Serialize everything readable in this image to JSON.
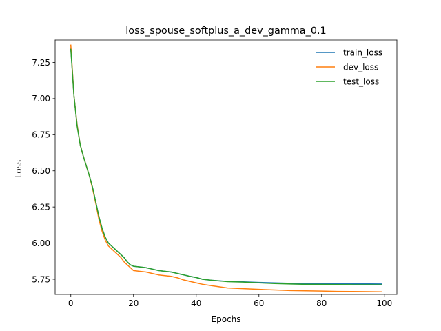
{
  "chart_data": {
    "type": "line",
    "title": "loss_spouse_softplus_a_dev_gamma_0.1",
    "xlabel": "Epochs",
    "ylabel": "Loss",
    "xlim": [
      -5,
      104
    ],
    "ylim": [
      5.645,
      7.405
    ],
    "xticks": [
      0,
      20,
      40,
      60,
      80,
      100
    ],
    "xtick_labels": [
      "0",
      "20",
      "40",
      "60",
      "80",
      "100"
    ],
    "yticks": [
      5.75,
      6.0,
      6.25,
      6.5,
      6.75,
      7.0,
      7.25
    ],
    "ytick_labels": [
      "5.75",
      "6.00",
      "6.25",
      "6.50",
      "6.75",
      "7.00",
      "7.25"
    ],
    "grid": false,
    "legend_position": "top-right",
    "series": [
      {
        "name": "train_loss",
        "color": "#1f77b4",
        "points": [
          [
            0,
            7.35
          ],
          [
            1,
            7.02
          ],
          [
            2,
            6.82
          ],
          [
            3,
            6.68
          ],
          [
            4,
            6.6
          ],
          [
            5,
            6.53
          ],
          [
            6,
            6.46
          ],
          [
            7,
            6.38
          ],
          [
            8,
            6.28
          ],
          [
            9,
            6.18
          ],
          [
            10,
            6.1
          ],
          [
            11,
            6.04
          ],
          [
            12,
            6.0
          ],
          [
            13,
            5.98
          ],
          [
            14,
            5.96
          ],
          [
            15,
            5.94
          ],
          [
            16,
            5.92
          ],
          [
            17,
            5.9
          ],
          [
            18,
            5.87
          ],
          [
            19,
            5.85
          ],
          [
            20,
            5.84
          ],
          [
            22,
            5.835
          ],
          [
            24,
            5.83
          ],
          [
            26,
            5.82
          ],
          [
            28,
            5.81
          ],
          [
            30,
            5.805
          ],
          [
            32,
            5.8
          ],
          [
            34,
            5.79
          ],
          [
            36,
            5.78
          ],
          [
            38,
            5.77
          ],
          [
            40,
            5.762
          ],
          [
            42,
            5.75
          ],
          [
            45,
            5.743
          ],
          [
            50,
            5.735
          ],
          [
            55,
            5.732
          ],
          [
            60,
            5.728
          ],
          [
            65,
            5.725
          ],
          [
            70,
            5.722
          ],
          [
            75,
            5.72
          ],
          [
            80,
            5.72
          ],
          [
            85,
            5.719
          ],
          [
            90,
            5.718
          ],
          [
            95,
            5.718
          ],
          [
            99,
            5.717
          ]
        ]
      },
      {
        "name": "dev_loss",
        "color": "#ff7f0e",
        "points": [
          [
            0,
            7.37
          ],
          [
            1,
            7.02
          ],
          [
            2,
            6.82
          ],
          [
            3,
            6.68
          ],
          [
            4,
            6.6
          ],
          [
            5,
            6.53
          ],
          [
            6,
            6.46
          ],
          [
            7,
            6.37
          ],
          [
            8,
            6.27
          ],
          [
            9,
            6.16
          ],
          [
            10,
            6.08
          ],
          [
            11,
            6.02
          ],
          [
            12,
            5.98
          ],
          [
            13,
            5.96
          ],
          [
            14,
            5.94
          ],
          [
            15,
            5.92
          ],
          [
            16,
            5.9
          ],
          [
            17,
            5.87
          ],
          [
            18,
            5.85
          ],
          [
            19,
            5.83
          ],
          [
            20,
            5.81
          ],
          [
            22,
            5.805
          ],
          [
            24,
            5.8
          ],
          [
            26,
            5.79
          ],
          [
            28,
            5.78
          ],
          [
            30,
            5.775
          ],
          [
            32,
            5.77
          ],
          [
            34,
            5.76
          ],
          [
            36,
            5.745
          ],
          [
            38,
            5.735
          ],
          [
            40,
            5.725
          ],
          [
            42,
            5.715
          ],
          [
            45,
            5.705
          ],
          [
            50,
            5.69
          ],
          [
            55,
            5.685
          ],
          [
            60,
            5.68
          ],
          [
            65,
            5.676
          ],
          [
            70,
            5.672
          ],
          [
            75,
            5.67
          ],
          [
            80,
            5.668
          ],
          [
            85,
            5.666
          ],
          [
            90,
            5.665
          ],
          [
            95,
            5.664
          ],
          [
            99,
            5.663
          ]
        ]
      },
      {
        "name": "test_loss",
        "color": "#2ca02c",
        "points": [
          [
            0,
            7.34
          ],
          [
            1,
            7.02
          ],
          [
            2,
            6.81
          ],
          [
            3,
            6.68
          ],
          [
            4,
            6.6
          ],
          [
            5,
            6.53
          ],
          [
            6,
            6.46
          ],
          [
            7,
            6.38
          ],
          [
            8,
            6.28
          ],
          [
            9,
            6.18
          ],
          [
            10,
            6.1
          ],
          [
            11,
            6.04
          ],
          [
            12,
            6.0
          ],
          [
            13,
            5.98
          ],
          [
            14,
            5.96
          ],
          [
            15,
            5.94
          ],
          [
            16,
            5.92
          ],
          [
            17,
            5.9
          ],
          [
            18,
            5.87
          ],
          [
            19,
            5.85
          ],
          [
            20,
            5.84
          ],
          [
            22,
            5.835
          ],
          [
            24,
            5.83
          ],
          [
            26,
            5.82
          ],
          [
            28,
            5.81
          ],
          [
            30,
            5.805
          ],
          [
            32,
            5.8
          ],
          [
            34,
            5.79
          ],
          [
            36,
            5.78
          ],
          [
            38,
            5.77
          ],
          [
            40,
            5.762
          ],
          [
            42,
            5.75
          ],
          [
            45,
            5.743
          ],
          [
            50,
            5.733
          ],
          [
            55,
            5.73
          ],
          [
            60,
            5.725
          ],
          [
            65,
            5.72
          ],
          [
            70,
            5.717
          ],
          [
            75,
            5.715
          ],
          [
            80,
            5.714
          ],
          [
            85,
            5.713
          ],
          [
            90,
            5.712
          ],
          [
            95,
            5.712
          ],
          [
            99,
            5.711
          ]
        ]
      }
    ]
  }
}
